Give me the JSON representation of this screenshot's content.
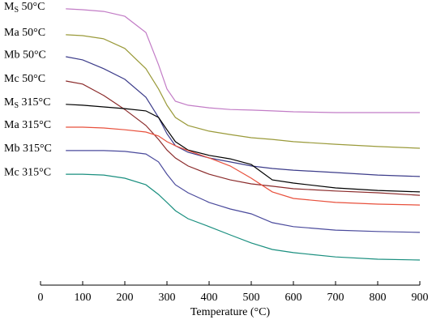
{
  "chart_data": {
    "type": "line",
    "xlabel": "Temperature (°C)",
    "x": [
      60,
      100,
      150,
      200,
      250,
      280,
      300,
      320,
      350,
      400,
      450,
      500,
      550,
      600,
      700,
      800,
      900
    ],
    "xlim": [
      0,
      900
    ],
    "xticks": [
      0,
      100,
      200,
      300,
      400,
      500,
      600,
      700,
      800,
      900
    ],
    "ylim": [
      0,
      100
    ],
    "series": [
      {
        "name": "MS 50°C",
        "color": "#c27cc6",
        "values": [
          96.9,
          96.6,
          96.0,
          94.3,
          88.6,
          77.3,
          68.8,
          64.5,
          63.1,
          62.2,
          61.6,
          61.4,
          61.1,
          60.8,
          60.5,
          60.5,
          60.5
        ]
      },
      {
        "name": "Ma 50°C",
        "color": "#9a9a3a",
        "values": [
          87.8,
          87.5,
          86.4,
          83.0,
          75.9,
          68.8,
          63.1,
          58.8,
          56.0,
          54.0,
          52.8,
          51.7,
          51.1,
          50.3,
          49.4,
          48.6,
          48.0
        ]
      },
      {
        "name": "Mb 50°C",
        "color": "#3c3c8a",
        "values": [
          80.1,
          79.0,
          75.9,
          72.2,
          65.9,
          58.8,
          53.1,
          48.9,
          46.6,
          44.6,
          43.2,
          41.8,
          40.9,
          40.3,
          39.5,
          38.6,
          38.1
        ]
      },
      {
        "name": "Mc 50°C",
        "color": "#8b2b2b",
        "values": [
          71.6,
          70.5,
          66.5,
          61.6,
          56.0,
          51.1,
          47.4,
          44.6,
          41.8,
          38.9,
          36.9,
          35.5,
          34.7,
          33.8,
          33.0,
          32.4,
          31.5
        ]
      },
      {
        "name": "MS 315°C",
        "color": "#000000",
        "values": [
          63.4,
          63.1,
          62.5,
          61.9,
          61.1,
          58.8,
          54.5,
          50.3,
          47.4,
          45.5,
          44.3,
          42.3,
          36.9,
          35.8,
          34.1,
          33.2,
          32.7
        ]
      },
      {
        "name": "Ma 315°C",
        "color": "#e8503c",
        "values": [
          55.4,
          55.4,
          55.1,
          54.5,
          53.7,
          52.3,
          50.3,
          48.9,
          47.2,
          44.6,
          41.8,
          37.5,
          32.7,
          30.4,
          29.0,
          28.4,
          28.1
        ]
      },
      {
        "name": "Mb 315°C",
        "color": "#4a4a9c",
        "values": [
          47.2,
          47.2,
          47.2,
          46.9,
          46.0,
          43.2,
          38.9,
          35.2,
          32.4,
          29.0,
          26.7,
          25.0,
          21.9,
          20.5,
          19.3,
          18.8,
          18.5
        ]
      },
      {
        "name": "Mc 315°C",
        "color": "#1a8f7f",
        "values": [
          38.9,
          38.9,
          38.6,
          37.5,
          35.2,
          31.8,
          29.0,
          26.1,
          23.3,
          20.5,
          17.6,
          14.8,
          12.5,
          11.4,
          9.9,
          9.1,
          8.8
        ]
      }
    ]
  }
}
